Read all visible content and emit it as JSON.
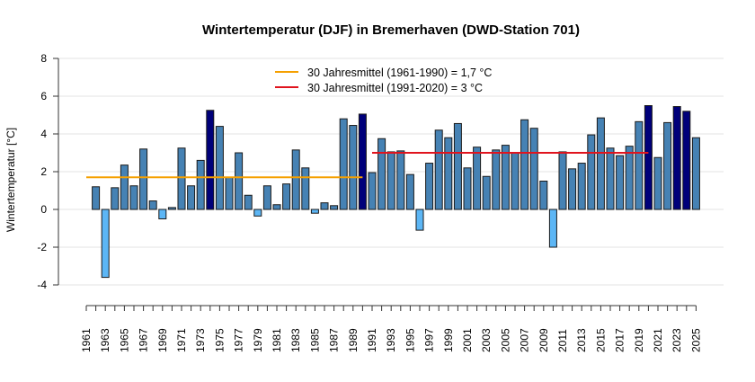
{
  "chart_data": {
    "type": "bar",
    "title": "Wintertemperatur (DJF) in Bremerhaven (DWD-Station 701)",
    "xlabel": "",
    "ylabel": "Wintertemperatur [°C]",
    "ylim": [
      -4,
      8
    ],
    "yticks": [
      -4,
      -2,
      0,
      2,
      4,
      6,
      8
    ],
    "xlim": [
      1961,
      2025
    ],
    "xtick_labels": [
      "1961",
      "1963",
      "1965",
      "1967",
      "1969",
      "1971",
      "1973",
      "1975",
      "1977",
      "1979",
      "1981",
      "1983",
      "1985",
      "1987",
      "1989",
      "1991",
      "1993",
      "1995",
      "1997",
      "1999",
      "2001",
      "2003",
      "2005",
      "2007",
      "2009",
      "2011",
      "2013",
      "2015",
      "2017",
      "2019",
      "2021",
      "2023",
      "2025"
    ],
    "grid": true,
    "legend_position": "top-center",
    "years": [
      1962,
      1963,
      1964,
      1965,
      1966,
      1967,
      1968,
      1969,
      1970,
      1971,
      1972,
      1973,
      1974,
      1975,
      1976,
      1977,
      1978,
      1979,
      1980,
      1981,
      1982,
      1983,
      1984,
      1985,
      1986,
      1987,
      1988,
      1989,
      1990,
      1991,
      1992,
      1993,
      1994,
      1995,
      1996,
      1997,
      1998,
      1999,
      2000,
      2001,
      2002,
      2003,
      2004,
      2005,
      2006,
      2007,
      2008,
      2009,
      2010,
      2011,
      2012,
      2013,
      2014,
      2015,
      2016,
      2017,
      2018,
      2019,
      2020,
      2021,
      2022,
      2023,
      2024,
      2025
    ],
    "values": [
      1.2,
      -3.6,
      1.15,
      2.35,
      1.25,
      3.2,
      0.45,
      -0.5,
      0.1,
      3.25,
      1.25,
      2.6,
      5.25,
      4.4,
      1.7,
      3.0,
      0.75,
      -0.35,
      1.25,
      0.25,
      1.35,
      3.15,
      2.2,
      -0.2,
      0.35,
      0.2,
      4.8,
      4.45,
      5.05,
      1.95,
      3.75,
      3.05,
      3.1,
      1.85,
      -1.1,
      2.45,
      4.2,
      3.8,
      4.55,
      2.2,
      3.3,
      1.75,
      3.15,
      3.4,
      3.0,
      4.75,
      4.3,
      1.5,
      -2.0,
      3.05,
      2.15,
      2.45,
      3.95,
      4.85,
      3.25,
      2.85,
      3.35,
      4.65,
      5.5,
      2.75,
      4.6,
      5.45,
      5.2,
      3.8
    ],
    "reference_lines": [
      {
        "name": "30 Jahresmittel (1961-1990) = 1,7 °C",
        "value": 1.7,
        "from": 1961,
        "to": 1990,
        "color": "#f5a000"
      },
      {
        "name": "30 Jahresmittel (1991-2020) = 3 °C",
        "value": 3.0,
        "from": 1991,
        "to": 2020,
        "color": "#e0141e"
      }
    ],
    "colors": {
      "negative": "#5cb6f5",
      "normal": "#4682b4",
      "above_5": "#00007a",
      "outline": "#1a1a1a"
    }
  }
}
